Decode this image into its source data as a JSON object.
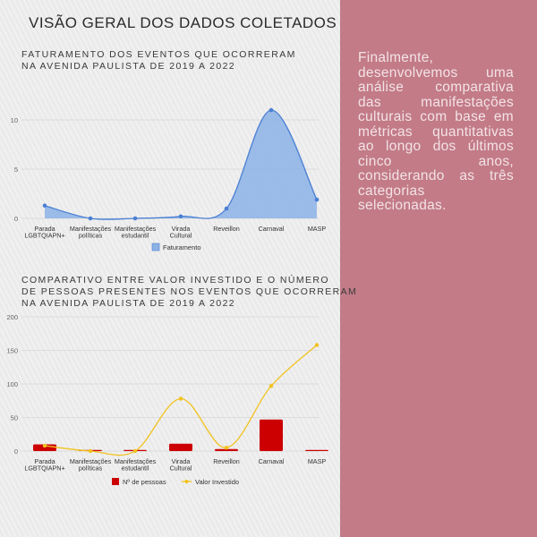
{
  "page": {
    "title": "VISÃO GERAL DOS DADOS COLETADOS",
    "right_text": "Finalmente, desenvolvemos uma análise comparativa das manifestações culturais com base em métricas quantitativas ao longo dos últimos cinco anos, considerando as três categorias selecionadas."
  },
  "colors": {
    "left_bg": "#eeeeee",
    "right_bg": "#c27b87",
    "area_fill": "#8cb2e6",
    "area_line": "#4a7fd4",
    "bar": "#cc0000",
    "line_yellow": "#f2c21e"
  },
  "chart_data": [
    {
      "type": "area",
      "title_lines": [
        "FATURAMENTO DOS EVENTOS QUE OCORRERAM",
        "NA AVENIDA PAULISTA DE 2019 A 2022"
      ],
      "categories": [
        [
          "Parada",
          "LGBTQIAPN+"
        ],
        [
          "Manifestações",
          "políticas"
        ],
        [
          "Manifestações",
          "estudantil"
        ],
        [
          "Virada",
          "Cultural"
        ],
        [
          "Reveillon"
        ],
        [
          "Carnaval"
        ],
        [
          "MASP"
        ]
      ],
      "series": [
        {
          "name": "Faturamento",
          "values": [
            1.3,
            0,
            0,
            0.2,
            1.0,
            11.0,
            1.9
          ]
        }
      ],
      "ylim": [
        0,
        12
      ],
      "yticks": [
        0,
        5,
        10
      ],
      "grid": true,
      "legend": "bottom"
    },
    {
      "type": "bar",
      "title_lines": [
        "COMPARATIVO ENTRE VALOR INVESTIDO E O NÚMERO",
        "DE PESSOAS PRESENTES NOS EVENTOS QUE OCORRERAM",
        "NA AVENIDA PAULISTA DE 2019 A 2022"
      ],
      "categories": [
        [
          "Parada",
          "LGBTQIAPN+"
        ],
        [
          "Manifestações",
          "políticas"
        ],
        [
          "Manifestações",
          "estudantil"
        ],
        [
          "Virada",
          "Cultural"
        ],
        [
          "Reveillon"
        ],
        [
          "Carnaval"
        ],
        [
          "MASP"
        ]
      ],
      "series": [
        {
          "name": "Nº de pessoas",
          "kind": "bar",
          "values": [
            10,
            0,
            0,
            11,
            3,
            47,
            1
          ]
        },
        {
          "name": "Valor Investido",
          "kind": "line",
          "values": [
            8,
            0,
            0,
            78,
            5,
            97,
            158
          ]
        }
      ],
      "ylim": [
        0,
        200
      ],
      "yticks": [
        0,
        50,
        100,
        150,
        200
      ],
      "grid": true,
      "legend": "bottom"
    }
  ]
}
